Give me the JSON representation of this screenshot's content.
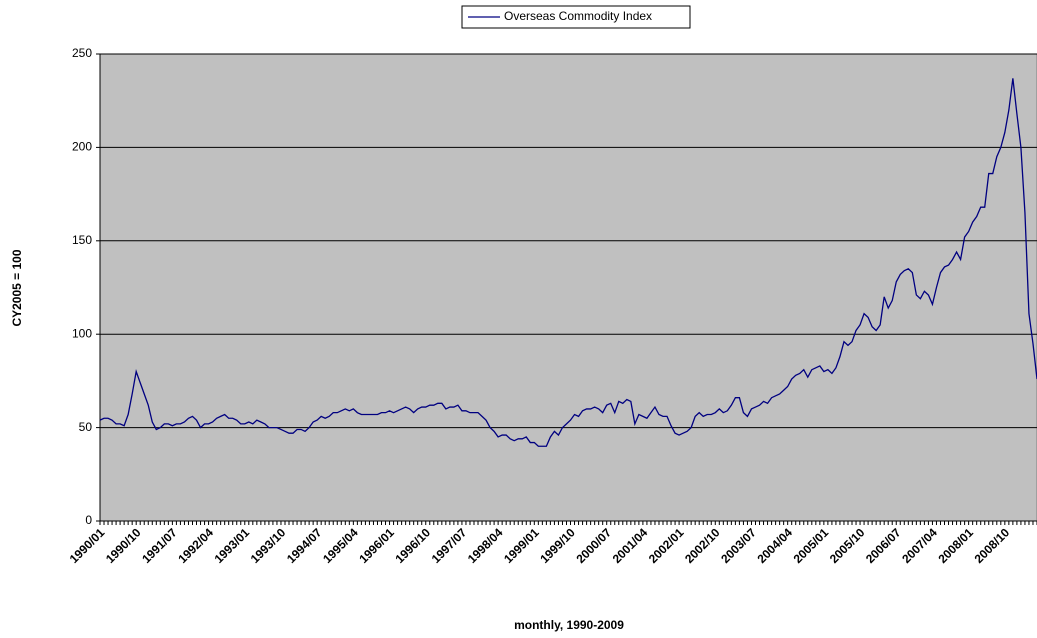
{
  "chart_data": {
    "type": "line",
    "x_label": "monthly, 1990-2009",
    "y_label": "CY2005 = 100",
    "categories": [
      "1990/01",
      null,
      null,
      null,
      null,
      null,
      null,
      null,
      null,
      "1990/10",
      null,
      null,
      null,
      null,
      null,
      null,
      null,
      null,
      "1991/07",
      null,
      null,
      null,
      null,
      null,
      null,
      null,
      null,
      "1992/04",
      null,
      null,
      null,
      null,
      null,
      null,
      null,
      null,
      "1993/01",
      null,
      null,
      null,
      null,
      null,
      null,
      null,
      null,
      "1993/10",
      null,
      null,
      null,
      null,
      null,
      null,
      null,
      null,
      "1994/07",
      null,
      null,
      null,
      null,
      null,
      null,
      null,
      null,
      "1995/04",
      null,
      null,
      null,
      null,
      null,
      null,
      null,
      null,
      "1996/01",
      null,
      null,
      null,
      null,
      null,
      null,
      null,
      null,
      "1996/10",
      null,
      null,
      null,
      null,
      null,
      null,
      null,
      null,
      "1997/07",
      null,
      null,
      null,
      null,
      null,
      null,
      null,
      null,
      "1998/04",
      null,
      null,
      null,
      null,
      null,
      null,
      null,
      null,
      "1999/01",
      null,
      null,
      null,
      null,
      null,
      null,
      null,
      null,
      "1999/10",
      null,
      null,
      null,
      null,
      null,
      null,
      null,
      null,
      "2000/07",
      null,
      null,
      null,
      null,
      null,
      null,
      null,
      null,
      "2001/04",
      null,
      null,
      null,
      null,
      null,
      null,
      null,
      null,
      "2002/01",
      null,
      null,
      null,
      null,
      null,
      null,
      null,
      null,
      "2002/10",
      null,
      null,
      null,
      null,
      null,
      null,
      null,
      null,
      "2003/07",
      null,
      null,
      null,
      null,
      null,
      null,
      null,
      null,
      "2004/04",
      null,
      null,
      null,
      null,
      null,
      null,
      null,
      null,
      "2005/01",
      null,
      null,
      null,
      null,
      null,
      null,
      null,
      null,
      "2005/10",
      null,
      null,
      null,
      null,
      null,
      null,
      null,
      null,
      "2006/07",
      null,
      null,
      null,
      null,
      null,
      null,
      null,
      null,
      "2007/04",
      null,
      null,
      null,
      null,
      null,
      null,
      null,
      null,
      "2008/01",
      null,
      null,
      null,
      null,
      null,
      null,
      null,
      null,
      "2008/10",
      null,
      null,
      null,
      null,
      null,
      null,
      null,
      null
    ],
    "series": [
      {
        "name": "Overseas Commodity Index",
        "color": "#000080",
        "values": [
          54,
          55,
          55,
          54,
          52,
          52,
          51,
          57,
          68,
          80,
          74,
          68,
          62,
          53,
          49,
          50,
          52,
          52,
          51,
          52,
          52,
          53,
          55,
          56,
          54,
          50,
          52,
          52,
          53,
          55,
          56,
          57,
          55,
          55,
          54,
          52,
          52,
          53,
          52,
          54,
          53,
          52,
          50,
          50,
          50,
          49,
          48,
          47,
          47,
          49,
          49,
          48,
          50,
          53,
          54,
          56,
          55,
          56,
          58,
          58,
          59,
          60,
          59,
          60,
          58,
          57,
          57,
          57,
          57,
          57,
          58,
          58,
          59,
          58,
          59,
          60,
          61,
          60,
          58,
          60,
          61,
          61,
          62,
          62,
          63,
          63,
          60,
          61,
          61,
          62,
          59,
          59,
          58,
          58,
          58,
          56,
          54,
          50,
          48,
          45,
          46,
          46,
          44,
          43,
          44,
          44,
          45,
          42,
          42,
          40,
          40,
          40,
          45,
          48,
          46,
          50,
          52,
          54,
          57,
          56,
          59,
          60,
          60,
          61,
          60,
          58,
          62,
          63,
          58,
          64,
          63,
          65,
          64,
          52,
          57,
          56,
          55,
          58,
          61,
          57,
          56,
          56,
          51,
          47,
          46,
          47,
          48,
          50,
          56,
          58,
          56,
          57,
          57,
          58,
          60,
          58,
          59,
          62,
          66,
          66,
          58,
          56,
          60,
          61,
          62,
          64,
          63,
          66,
          67,
          68,
          70,
          72,
          76,
          78,
          79,
          81,
          77,
          81,
          82,
          83,
          80,
          81,
          79,
          82,
          88,
          96,
          94,
          96,
          102,
          105,
          111,
          109,
          104,
          102,
          105,
          120,
          114,
          118,
          128,
          132,
          134,
          135,
          133,
          121,
          119,
          123,
          121,
          116,
          125,
          133,
          136,
          137,
          140,
          144,
          140,
          152,
          155,
          160,
          163,
          168,
          168,
          186,
          186,
          195,
          200,
          208,
          220,
          237,
          218,
          200,
          165,
          111,
          95,
          76
        ]
      }
    ],
    "ylim": [
      0,
      250
    ],
    "yticks": [
      0,
      50,
      100,
      150,
      200,
      250
    ],
    "grid": true,
    "plot_background": "#c0c0c0",
    "legend": "top"
  }
}
